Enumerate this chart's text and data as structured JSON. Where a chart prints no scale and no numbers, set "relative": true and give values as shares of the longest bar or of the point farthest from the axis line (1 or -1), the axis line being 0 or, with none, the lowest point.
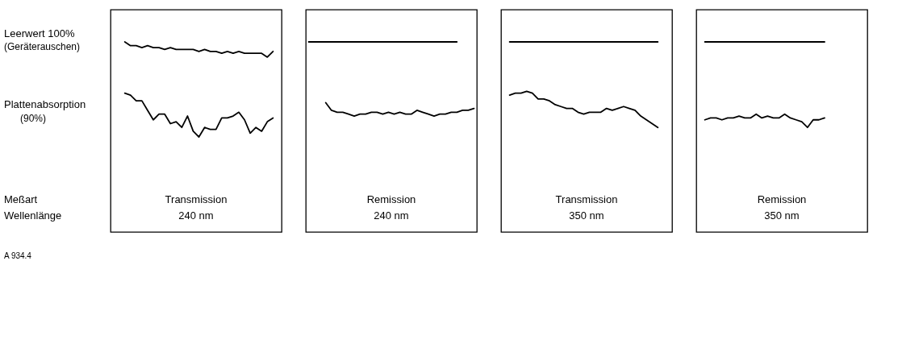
{
  "chart_data": [
    {
      "type": "line",
      "relative": true,
      "title": "Transmission",
      "subtitle": "240 nm",
      "annotations": [
        "Leerwert  100%",
        "(Geräterauschen)",
        "Plattenabsorption",
        "(90%)",
        "Meßart",
        "Wellenlänge",
        "A 934.4"
      ],
      "categories": [
        null,
        null,
        null,
        null,
        null,
        null,
        null,
        null,
        null,
        null,
        null,
        null,
        null,
        null,
        null,
        null,
        null,
        null,
        null,
        null,
        null,
        null,
        null,
        null,
        null,
        null,
        null,
        null,
        null,
        null
      ],
      "series": [
        {
          "color": "#000000",
          "values": [
            null,
            null,
            1.0,
            0.98,
            0.98,
            0.97,
            0.98,
            0.97,
            0.97,
            0.96,
            0.97,
            0.96,
            0.96,
            0.96,
            0.96,
            0.95,
            0.96,
            0.95,
            0.95,
            0.94,
            0.95,
            0.94,
            0.95,
            0.94,
            0.94,
            0.94,
            0.94,
            0.92,
            0.95,
            null
          ]
        },
        {
          "color": "#000000",
          "values": [
            null,
            null,
            0.73,
            0.72,
            0.69,
            0.69,
            0.64,
            0.59,
            0.62,
            0.62,
            0.57,
            0.58,
            0.55,
            0.61,
            0.53,
            0.5,
            0.55,
            0.54,
            0.54,
            0.6,
            0.6,
            0.61,
            0.63,
            0.59,
            0.52,
            0.55,
            0.53,
            0.58,
            0.6,
            null
          ]
        }
      ]
    },
    {
      "type": "line",
      "relative": true,
      "title": "Remission",
      "subtitle": "240 nm",
      "categories": [
        null,
        null,
        null,
        null,
        null,
        null,
        null,
        null,
        null,
        null,
        null,
        null,
        null,
        null,
        null,
        null,
        null,
        null,
        null,
        null,
        null,
        null,
        null,
        null,
        null,
        null,
        null,
        null,
        null,
        null
      ],
      "series": [
        {
          "color": "#000000",
          "values": [
            1,
            1,
            1,
            1,
            1,
            1,
            1,
            1,
            1,
            1,
            1,
            1,
            1,
            1,
            1,
            1,
            1,
            1,
            1,
            1,
            1,
            1,
            1,
            1,
            1,
            1,
            1,
            null,
            null,
            null
          ]
        },
        {
          "color": "#000000",
          "values": [
            null,
            null,
            null,
            0.68,
            0.64,
            0.63,
            0.63,
            0.62,
            0.61,
            0.62,
            0.62,
            0.63,
            0.63,
            0.62,
            0.63,
            0.62,
            0.63,
            0.62,
            0.62,
            0.64,
            0.63,
            0.62,
            0.61,
            0.62,
            0.62,
            0.63,
            0.63,
            0.64,
            0.64,
            0.65
          ]
        }
      ]
    },
    {
      "type": "line",
      "relative": true,
      "title": "Transmission",
      "subtitle": "350 nm",
      "categories": [
        null,
        null,
        null,
        null,
        null,
        null,
        null,
        null,
        null,
        null,
        null,
        null,
        null,
        null,
        null,
        null,
        null,
        null,
        null,
        null,
        null,
        null,
        null,
        null,
        null,
        null,
        null,
        null,
        null,
        null
      ],
      "series": [
        {
          "color": "#000000",
          "values": [
            null,
            1,
            1,
            1,
            1,
            1,
            1,
            1,
            1,
            1,
            1,
            1,
            1,
            1,
            1,
            1,
            1,
            1,
            1,
            1,
            1,
            1,
            1,
            1,
            1,
            1,
            1,
            1,
            null,
            null
          ]
        },
        {
          "color": "#000000",
          "values": [
            null,
            0.72,
            0.73,
            0.73,
            0.74,
            0.73,
            0.7,
            0.7,
            0.69,
            0.67,
            0.66,
            0.65,
            0.65,
            0.63,
            0.62,
            0.63,
            0.63,
            0.63,
            0.65,
            0.64,
            0.65,
            0.66,
            0.65,
            0.64,
            0.61,
            0.59,
            0.57,
            0.55,
            null,
            null
          ]
        }
      ]
    },
    {
      "type": "line",
      "relative": true,
      "title": "Remission",
      "subtitle": "350 nm",
      "categories": [
        null,
        null,
        null,
        null,
        null,
        null,
        null,
        null,
        null,
        null,
        null,
        null,
        null,
        null,
        null,
        null,
        null,
        null,
        null,
        null,
        null,
        null,
        null,
        null,
        null,
        null,
        null,
        null,
        null,
        null
      ],
      "series": [
        {
          "color": "#000000",
          "values": [
            null,
            1,
            1,
            1,
            1,
            1,
            1,
            1,
            1,
            1,
            1,
            1,
            1,
            1,
            1,
            1,
            1,
            1,
            1,
            1,
            1,
            1,
            1,
            null,
            null,
            null,
            null,
            null,
            null,
            null
          ]
        },
        {
          "color": "#000000",
          "values": [
            null,
            0.59,
            0.6,
            0.6,
            0.59,
            0.6,
            0.6,
            0.61,
            0.6,
            0.6,
            0.62,
            0.6,
            0.61,
            0.6,
            0.6,
            0.62,
            0.6,
            0.59,
            0.58,
            0.55,
            0.59,
            0.59,
            0.6,
            null,
            null,
            null,
            null,
            null,
            null,
            null
          ]
        }
      ]
    }
  ]
}
